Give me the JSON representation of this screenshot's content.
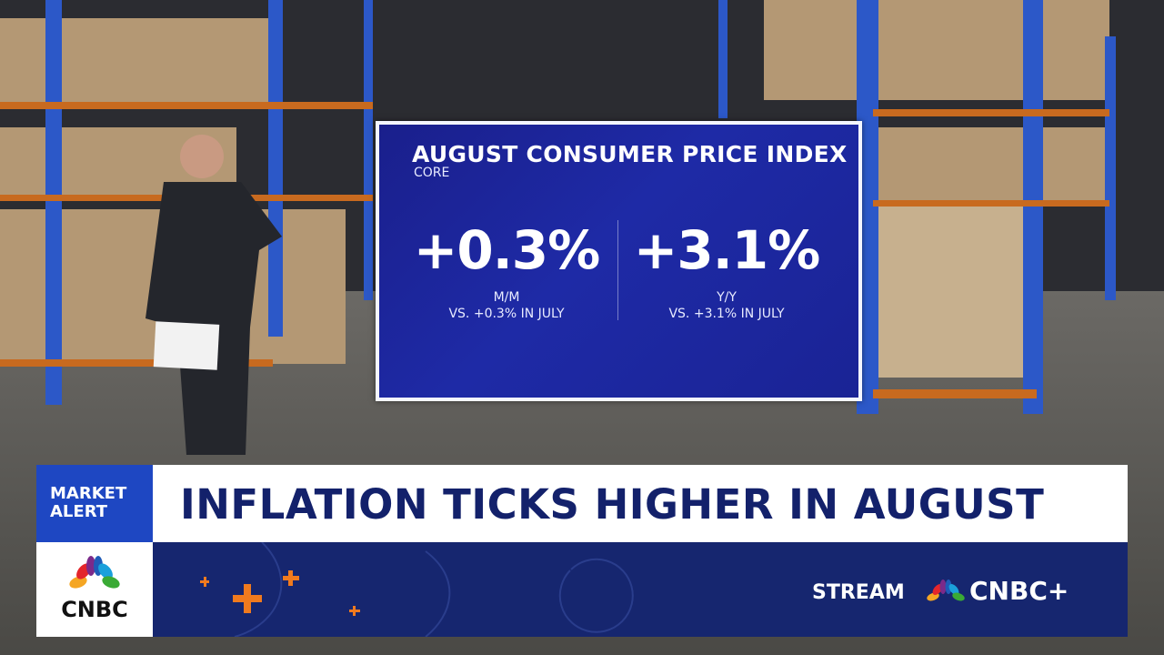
{
  "panel": {
    "title": "AUGUST CONSUMER PRICE INDEX",
    "subtitle": "CORE",
    "stats": [
      {
        "value": "+0.3%",
        "label": "M/M",
        "comparison": "VS. +0.3% IN JULY"
      },
      {
        "value": "+3.1%",
        "label": "Y/Y",
        "comparison": "VS. +3.1% IN JULY"
      }
    ]
  },
  "lower_third": {
    "alert": [
      "MARKET",
      "ALERT"
    ],
    "headline": "INFLATION TICKS HIGHER IN AUGUST",
    "logo": "CNBC",
    "stream": "STREAM",
    "brand": "CNBC+"
  }
}
